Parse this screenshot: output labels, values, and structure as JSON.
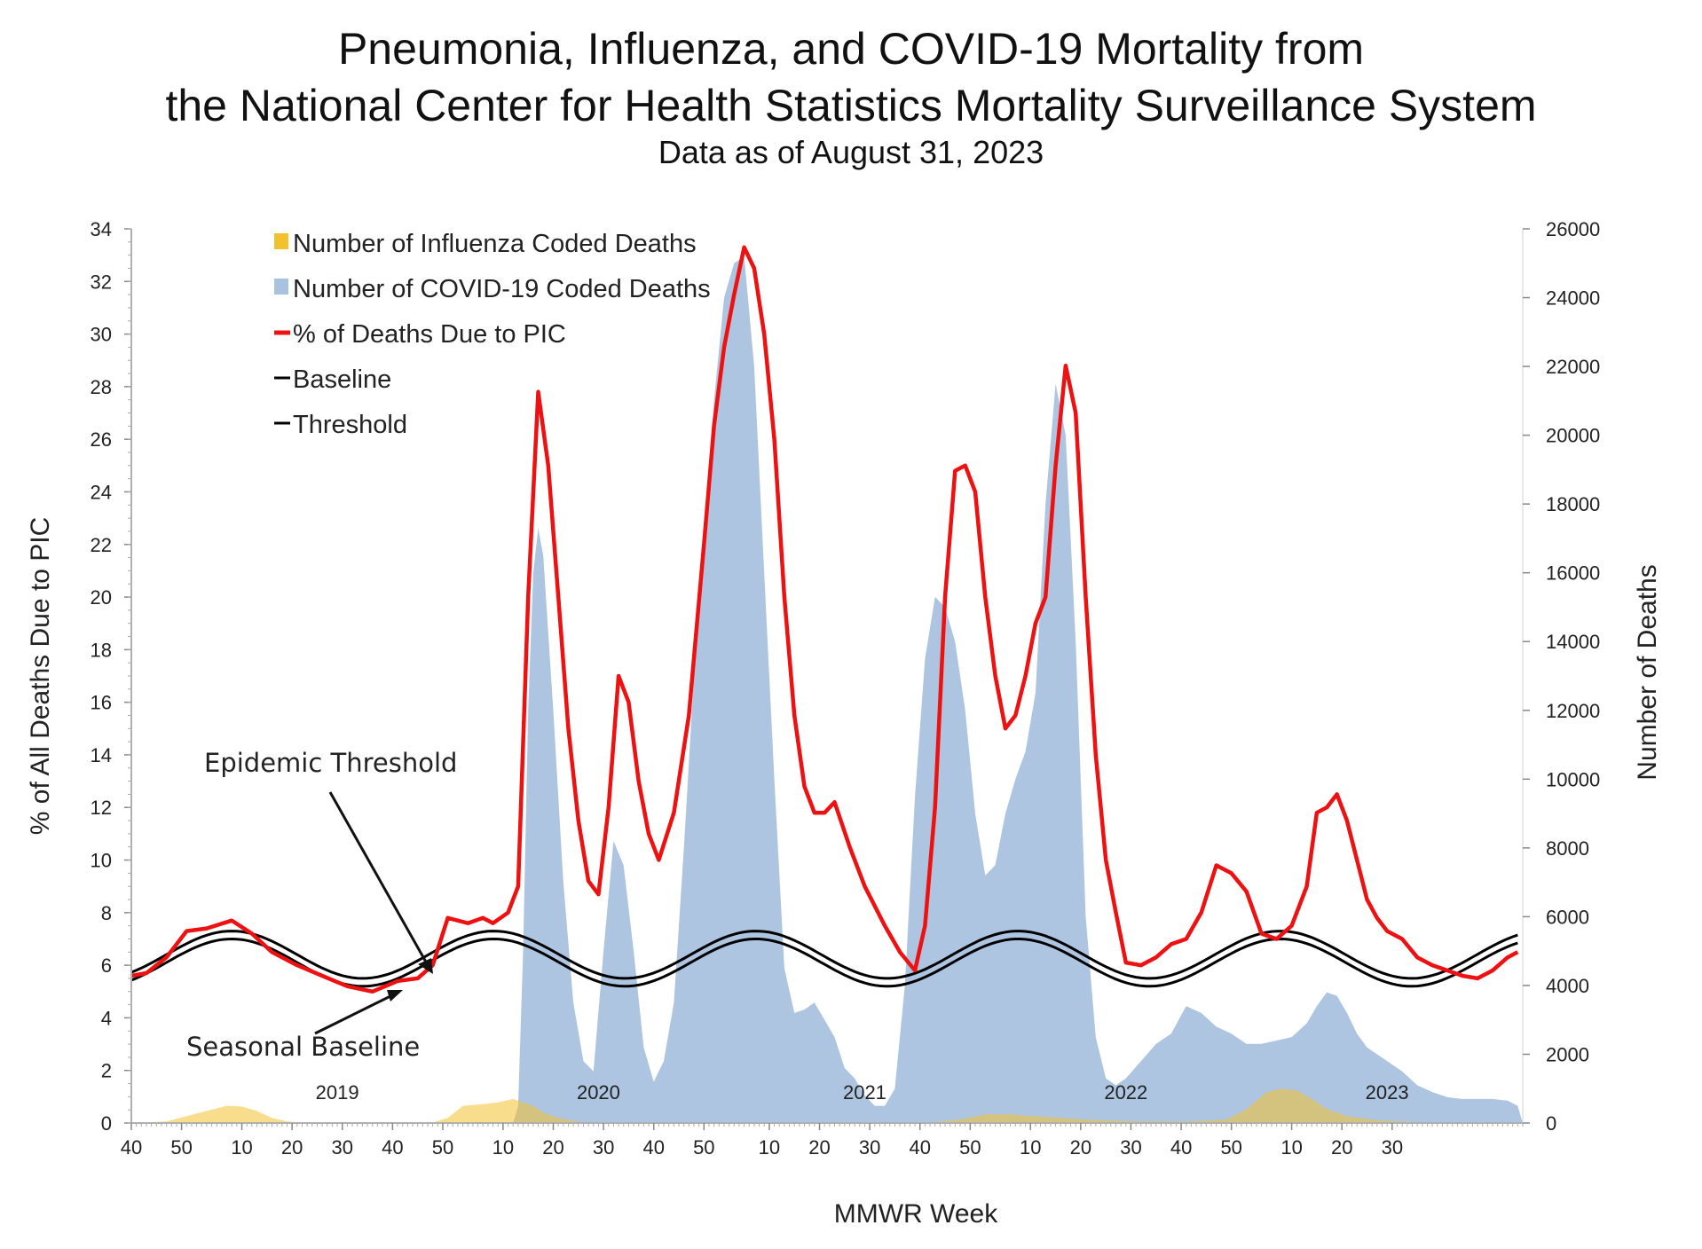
{
  "chart_data": {
    "type": "area+line",
    "title_line1": "Pneumonia, Influenza, and COVID-19 Mortality from",
    "title_line2": "the National Center for Health Statistics Mortality Surveillance System",
    "subtitle": "Data as of August 31, 2023",
    "xlabel": "MMWR Week",
    "ylabel_left": "% of All Deaths Due to PIC",
    "ylabel_right": "Number of Deaths",
    "ylim_left": [
      0,
      34
    ],
    "ylim_right": [
      0,
      26000
    ],
    "left_ticks": [
      "0",
      "2",
      "4",
      "6",
      "8",
      "10",
      "12",
      "14",
      "16",
      "18",
      "20",
      "22",
      "24",
      "26",
      "28",
      "30",
      "32",
      "34"
    ],
    "right_ticks": [
      "0",
      "2000",
      "4000",
      "6000",
      "8000",
      "10000",
      "12000",
      "14000",
      "16000",
      "18000",
      "20000",
      "22000",
      "24000",
      "26000"
    ],
    "x_ticks": [
      {
        "week": 0,
        "label": "40"
      },
      {
        "week": 10,
        "label": "50"
      },
      {
        "week": 22,
        "label": "10"
      },
      {
        "week": 32,
        "label": "20"
      },
      {
        "week": 42,
        "label": "30"
      },
      {
        "week": 52,
        "label": "40"
      },
      {
        "week": 62,
        "label": "50"
      },
      {
        "week": 74,
        "label": "10"
      },
      {
        "week": 84,
        "label": "20"
      },
      {
        "week": 94,
        "label": "30"
      },
      {
        "week": 104,
        "label": "40"
      },
      {
        "week": 114,
        "label": "50"
      },
      {
        "week": 127,
        "label": "10"
      },
      {
        "week": 137,
        "label": "20"
      },
      {
        "week": 147,
        "label": "30"
      },
      {
        "week": 157,
        "label": "40"
      },
      {
        "week": 167,
        "label": "50"
      },
      {
        "week": 179,
        "label": "10"
      },
      {
        "week": 189,
        "label": "20"
      },
      {
        "week": 199,
        "label": "30"
      },
      {
        "week": 209,
        "label": "40"
      },
      {
        "week": 219,
        "label": "50"
      },
      {
        "week": 231,
        "label": "10"
      },
      {
        "week": 241,
        "label": "20"
      },
      {
        "week": 251,
        "label": "30"
      }
    ],
    "year_labels": [
      {
        "week": 41,
        "label": "2019"
      },
      {
        "week": 93,
        "label": "2020"
      },
      {
        "week": 146,
        "label": "2021"
      },
      {
        "week": 198,
        "label": "2022"
      },
      {
        "week": 250,
        "label": "2023"
      }
    ],
    "legend": [
      {
        "label": "Number of Influenza Coded Deaths",
        "color": "#f2c12e",
        "kind": "area"
      },
      {
        "label": "Number of COVID-19 Coded Deaths",
        "color": "#a9c2df",
        "kind": "area"
      },
      {
        "label": "% of Deaths Due to PIC",
        "color": "#ee1111",
        "kind": "line"
      },
      {
        "label": "Baseline",
        "color": "#000000",
        "kind": "line"
      },
      {
        "label": "Threshold",
        "color": "#000000",
        "kind": "line"
      }
    ],
    "annotations": {
      "epidemic_threshold": "Epidemic Threshold",
      "seasonal_baseline": "Seasonal Baseline"
    },
    "series": [
      {
        "name": "% of Deaths Due to PIC",
        "axis": "left",
        "points": [
          [
            0,
            5.6
          ],
          [
            3,
            5.7
          ],
          [
            7,
            6.3
          ],
          [
            11,
            7.3
          ],
          [
            15,
            7.4
          ],
          [
            20,
            7.7
          ],
          [
            24,
            7.2
          ],
          [
            28,
            6.5
          ],
          [
            33,
            6.0
          ],
          [
            38,
            5.6
          ],
          [
            43,
            5.2
          ],
          [
            48,
            5.0
          ],
          [
            53,
            5.4
          ],
          [
            57,
            5.5
          ],
          [
            60,
            6.0
          ],
          [
            63,
            7.8
          ],
          [
            67,
            7.6
          ],
          [
            70,
            7.8
          ],
          [
            72,
            7.6
          ],
          [
            75,
            8.0
          ],
          [
            77,
            9.0
          ],
          [
            79,
            20.0
          ],
          [
            81,
            27.8
          ],
          [
            83,
            25.0
          ],
          [
            85,
            20.0
          ],
          [
            87,
            15.0
          ],
          [
            89,
            11.5
          ],
          [
            91,
            9.2
          ],
          [
            93,
            8.7
          ],
          [
            95,
            12.0
          ],
          [
            97,
            17.0
          ],
          [
            99,
            16.0
          ],
          [
            101,
            13.0
          ],
          [
            103,
            11.0
          ],
          [
            105,
            10.0
          ],
          [
            108,
            11.8
          ],
          [
            111,
            15.5
          ],
          [
            114,
            22.0
          ],
          [
            116,
            26.5
          ],
          [
            118,
            29.5
          ],
          [
            120,
            31.5
          ],
          [
            122,
            33.3
          ],
          [
            124,
            32.5
          ],
          [
            126,
            30.0
          ],
          [
            128,
            26.0
          ],
          [
            130,
            20.0
          ],
          [
            132,
            15.5
          ],
          [
            134,
            12.8
          ],
          [
            136,
            11.8
          ],
          [
            138,
            11.8
          ],
          [
            140,
            12.2
          ],
          [
            143,
            10.5
          ],
          [
            146,
            9.0
          ],
          [
            150,
            7.5
          ],
          [
            153,
            6.5
          ],
          [
            156,
            5.8
          ],
          [
            158,
            7.5
          ],
          [
            160,
            12.0
          ],
          [
            162,
            20.0
          ],
          [
            164,
            24.8
          ],
          [
            166,
            25.0
          ],
          [
            168,
            24.0
          ],
          [
            170,
            20.0
          ],
          [
            172,
            17.0
          ],
          [
            174,
            15.0
          ],
          [
            176,
            15.5
          ],
          [
            178,
            17.0
          ],
          [
            180,
            19.0
          ],
          [
            182,
            20.0
          ],
          [
            184,
            25.0
          ],
          [
            186,
            28.8
          ],
          [
            188,
            27.0
          ],
          [
            190,
            20.0
          ],
          [
            192,
            14.0
          ],
          [
            194,
            10.0
          ],
          [
            196,
            8.0
          ],
          [
            198,
            6.1
          ],
          [
            201,
            6.0
          ],
          [
            204,
            6.3
          ],
          [
            207,
            6.8
          ],
          [
            210,
            7.0
          ],
          [
            213,
            8.0
          ],
          [
            216,
            9.8
          ],
          [
            219,
            9.5
          ],
          [
            222,
            8.8
          ],
          [
            225,
            7.2
          ],
          [
            228,
            7.0
          ],
          [
            231,
            7.5
          ],
          [
            234,
            9.0
          ],
          [
            236,
            11.8
          ],
          [
            238,
            12.0
          ],
          [
            240,
            12.5
          ],
          [
            242,
            11.5
          ],
          [
            244,
            10.0
          ],
          [
            246,
            8.5
          ],
          [
            248,
            7.8
          ],
          [
            250,
            7.3
          ],
          [
            253,
            7.0
          ],
          [
            256,
            6.3
          ],
          [
            259,
            6.0
          ],
          [
            262,
            5.8
          ],
          [
            265,
            5.6
          ],
          [
            268,
            5.5
          ],
          [
            271,
            5.8
          ],
          [
            274,
            6.3
          ],
          [
            276,
            6.5
          ]
        ]
      },
      {
        "name": "Number of COVID-19 Coded Deaths",
        "axis": "right",
        "points": [
          [
            76,
            0
          ],
          [
            77,
            500
          ],
          [
            78,
            5000
          ],
          [
            79,
            12000
          ],
          [
            80,
            16000
          ],
          [
            81,
            17300
          ],
          [
            82,
            16500
          ],
          [
            84,
            12000
          ],
          [
            86,
            7000
          ],
          [
            88,
            3500
          ],
          [
            90,
            1800
          ],
          [
            92,
            1500
          ],
          [
            94,
            5000
          ],
          [
            96,
            8200
          ],
          [
            98,
            7500
          ],
          [
            100,
            5000
          ],
          [
            102,
            2200
          ],
          [
            104,
            1200
          ],
          [
            106,
            1800
          ],
          [
            108,
            3500
          ],
          [
            110,
            8000
          ],
          [
            112,
            13000
          ],
          [
            114,
            17000
          ],
          [
            116,
            21000
          ],
          [
            118,
            24000
          ],
          [
            120,
            25000
          ],
          [
            122,
            25200
          ],
          [
            124,
            22000
          ],
          [
            126,
            16000
          ],
          [
            128,
            10000
          ],
          [
            130,
            4500
          ],
          [
            132,
            3200
          ],
          [
            134,
            3300
          ],
          [
            136,
            3500
          ],
          [
            138,
            3000
          ],
          [
            140,
            2500
          ],
          [
            142,
            1600
          ],
          [
            144,
            1300
          ],
          [
            146,
            800
          ],
          [
            148,
            500
          ],
          [
            150,
            500
          ],
          [
            152,
            1000
          ],
          [
            154,
            4000
          ],
          [
            156,
            9500
          ],
          [
            158,
            13500
          ],
          [
            160,
            15300
          ],
          [
            162,
            15000
          ],
          [
            164,
            14000
          ],
          [
            166,
            12000
          ],
          [
            168,
            9000
          ],
          [
            170,
            7200
          ],
          [
            172,
            7500
          ],
          [
            174,
            9000
          ],
          [
            176,
            10000
          ],
          [
            178,
            10800
          ],
          [
            180,
            12500
          ],
          [
            182,
            18000
          ],
          [
            184,
            21500
          ],
          [
            186,
            20000
          ],
          [
            188,
            14000
          ],
          [
            190,
            6000
          ],
          [
            192,
            2500
          ],
          [
            194,
            1300
          ],
          [
            196,
            1100
          ],
          [
            198,
            1300
          ],
          [
            201,
            1800
          ],
          [
            204,
            2300
          ],
          [
            207,
            2600
          ],
          [
            210,
            3400
          ],
          [
            213,
            3200
          ],
          [
            216,
            2800
          ],
          [
            219,
            2600
          ],
          [
            222,
            2300
          ],
          [
            225,
            2300
          ],
          [
            228,
            2400
          ],
          [
            231,
            2500
          ],
          [
            234,
            2900
          ],
          [
            236,
            3400
          ],
          [
            238,
            3800
          ],
          [
            240,
            3700
          ],
          [
            242,
            3200
          ],
          [
            244,
            2600
          ],
          [
            246,
            2200
          ],
          [
            248,
            2000
          ],
          [
            250,
            1800
          ],
          [
            253,
            1500
          ],
          [
            256,
            1100
          ],
          [
            259,
            900
          ],
          [
            262,
            750
          ],
          [
            265,
            700
          ],
          [
            268,
            700
          ],
          [
            271,
            700
          ],
          [
            274,
            650
          ],
          [
            276,
            500
          ],
          [
            277,
            0
          ]
        ]
      },
      {
        "name": "Number of Influenza Coded Deaths",
        "axis": "right",
        "points": [
          [
            0,
            0
          ],
          [
            7,
            50
          ],
          [
            11,
            200
          ],
          [
            15,
            350
          ],
          [
            19,
            500
          ],
          [
            22,
            480
          ],
          [
            25,
            350
          ],
          [
            28,
            150
          ],
          [
            31,
            50
          ],
          [
            35,
            0
          ],
          [
            55,
            0
          ],
          [
            60,
            20
          ],
          [
            63,
            150
          ],
          [
            66,
            500
          ],
          [
            70,
            550
          ],
          [
            73,
            600
          ],
          [
            76,
            700
          ],
          [
            78,
            600
          ],
          [
            80,
            500
          ],
          [
            82,
            300
          ],
          [
            85,
            150
          ],
          [
            88,
            60
          ],
          [
            92,
            0
          ],
          [
            150,
            0
          ],
          [
            160,
            30
          ],
          [
            165,
            100
          ],
          [
            170,
            250
          ],
          [
            175,
            250
          ],
          [
            180,
            200
          ],
          [
            185,
            150
          ],
          [
            190,
            100
          ],
          [
            200,
            50
          ],
          [
            210,
            40
          ],
          [
            218,
            100
          ],
          [
            222,
            400
          ],
          [
            226,
            900
          ],
          [
            229,
            1000
          ],
          [
            232,
            950
          ],
          [
            235,
            700
          ],
          [
            238,
            400
          ],
          [
            242,
            200
          ],
          [
            248,
            80
          ],
          [
            255,
            30
          ],
          [
            262,
            0
          ]
        ]
      },
      {
        "name": "Seasonal Baseline",
        "axis": "left",
        "formula": "6.1 + 0.9*cos(2*pi*(week - 20)/52.18)"
      },
      {
        "name": "Epidemic Threshold",
        "axis": "left",
        "formula": "baseline + 0.3"
      }
    ]
  }
}
